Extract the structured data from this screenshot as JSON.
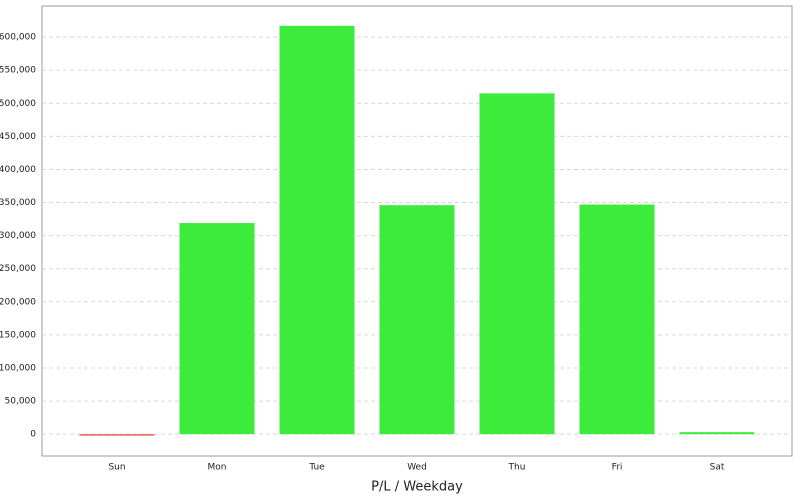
{
  "chart_data": {
    "type": "bar",
    "x_label": "P/L / Weekday",
    "categories": [
      "Sun",
      "Mon",
      "Tue",
      "Wed",
      "Thu",
      "Fri",
      "Sat"
    ],
    "values": [
      -2000,
      319000,
      617000,
      346000,
      515000,
      347000,
      3000
    ],
    "positive_color": "#3deb3d",
    "negative_color": "#e85c5c",
    "ylim": [
      -33000,
      647000
    ],
    "yticks": [
      0,
      {
        "value": 50000,
        "label": "50,000"
      },
      {
        "value": 100000,
        "label": "100,000"
      },
      {
        "value": 150000,
        "label": "150,000"
      },
      {
        "value": 200000,
        "label": "200,000"
      },
      {
        "value": 250000,
        "label": "250,000"
      },
      {
        "value": 300000,
        "label": "300,000"
      },
      {
        "value": 350000,
        "label": "350,000"
      },
      {
        "value": 400000,
        "label": "400,000"
      },
      {
        "value": 450000,
        "label": "450,000"
      },
      {
        "value": 500000,
        "label": "500,000"
      },
      {
        "value": 550000,
        "label": "550,000"
      },
      {
        "value": 600000,
        "label": "600,000"
      }
    ],
    "grid": true
  }
}
